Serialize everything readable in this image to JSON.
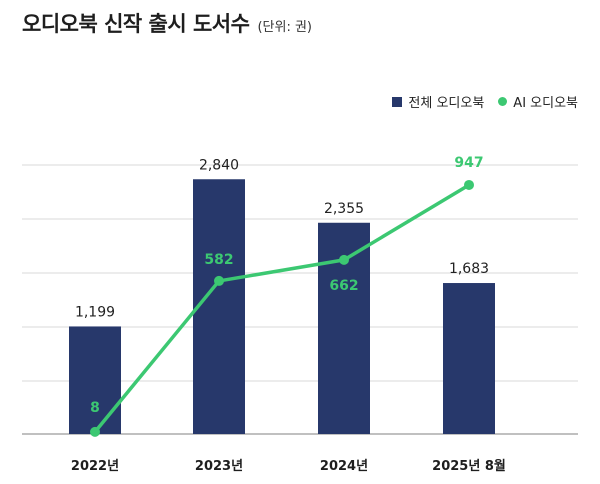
{
  "header": {
    "title": "오디오북 신작 출시 도서수",
    "unit": "(단위: 권)"
  },
  "legend": {
    "bar_label": "전체 오디오북",
    "line_label": "AI 오디오북"
  },
  "colors": {
    "bar": "#27386B",
    "line": "#3CC872",
    "grid": "#D9D9D9",
    "axis": "#9A9A9A",
    "bar_label": "#222222",
    "line_label": "#3CC872"
  },
  "chart_data": {
    "type": "bar",
    "title": "오디오북 신작 출시 도서수",
    "subtitle": "(단위: 권)",
    "categories": [
      "2022년",
      "2023년",
      "2024년",
      "2025년 8월"
    ],
    "series": [
      {
        "name": "전체 오디오북",
        "type": "bar",
        "values": [
          1199,
          2840,
          2355,
          1683
        ],
        "labels": [
          "1,199",
          "2,840",
          "2,355",
          "1,683"
        ]
      },
      {
        "name": "AI 오디오북",
        "type": "line",
        "values": [
          8,
          582,
          662,
          947
        ],
        "labels": [
          "8",
          "582",
          "662",
          "947"
        ]
      }
    ],
    "legend_position": "top-right",
    "grid": true
  }
}
